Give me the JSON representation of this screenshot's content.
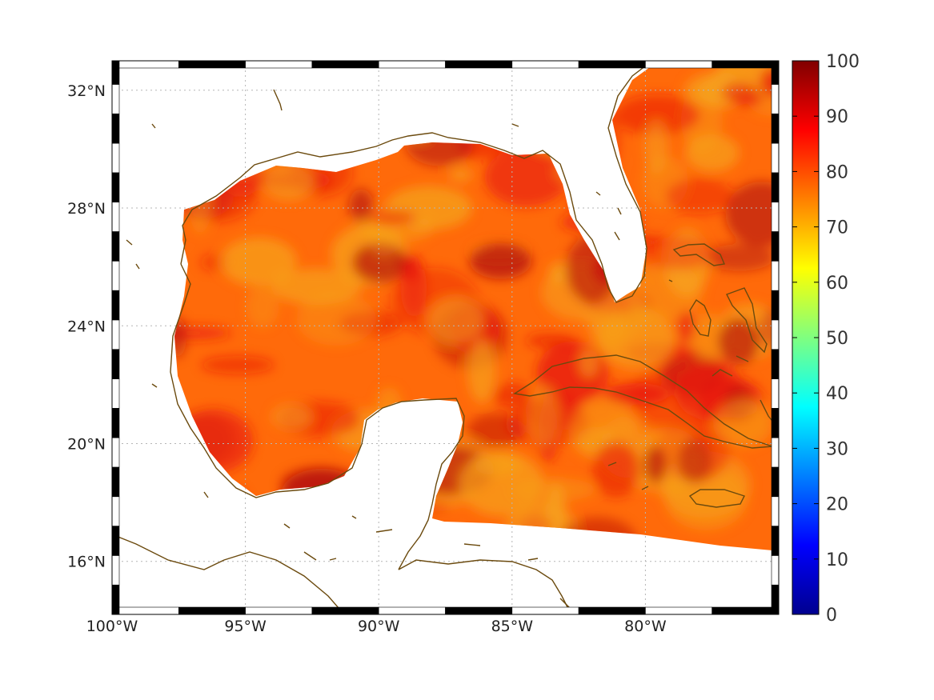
{
  "map": {
    "lon_range": [
      -100,
      -75
    ],
    "lat_range": [
      14.2,
      33
    ],
    "lat_ticks": [
      {
        "value": 32,
        "label": "32°N"
      },
      {
        "value": 28,
        "label": "28°N"
      },
      {
        "value": 24,
        "label": "24°N"
      },
      {
        "value": 20,
        "label": "20°N"
      },
      {
        "value": 16,
        "label": "16°N"
      }
    ],
    "lon_ticks": [
      {
        "value": -100,
        "label": "100°W"
      },
      {
        "value": -95,
        "label": "95°W"
      },
      {
        "value": -90,
        "label": "90°W"
      },
      {
        "value": -85,
        "label": "85°W"
      },
      {
        "value": -80,
        "label": "80°W"
      }
    ],
    "grid": true,
    "coastline_color": "#6b4a0e",
    "field_range": [
      70,
      95
    ],
    "colors": {
      "field_low": "#f6a21c",
      "field_mid": "#ff6a0a",
      "field_high": "#e81a0a",
      "field_peak": "#b30d0d"
    }
  },
  "colorbar": {
    "min": 0,
    "max": 100,
    "ticks": [
      {
        "value": 100,
        "label": "100"
      },
      {
        "value": 90,
        "label": "90"
      },
      {
        "value": 80,
        "label": "80"
      },
      {
        "value": 70,
        "label": "70"
      },
      {
        "value": 60,
        "label": "60"
      },
      {
        "value": 50,
        "label": "50"
      },
      {
        "value": 40,
        "label": "40"
      },
      {
        "value": 30,
        "label": "30"
      },
      {
        "value": 20,
        "label": "20"
      },
      {
        "value": 10,
        "label": "10"
      },
      {
        "value": 0,
        "label": "0"
      }
    ],
    "colormap": "jet"
  }
}
